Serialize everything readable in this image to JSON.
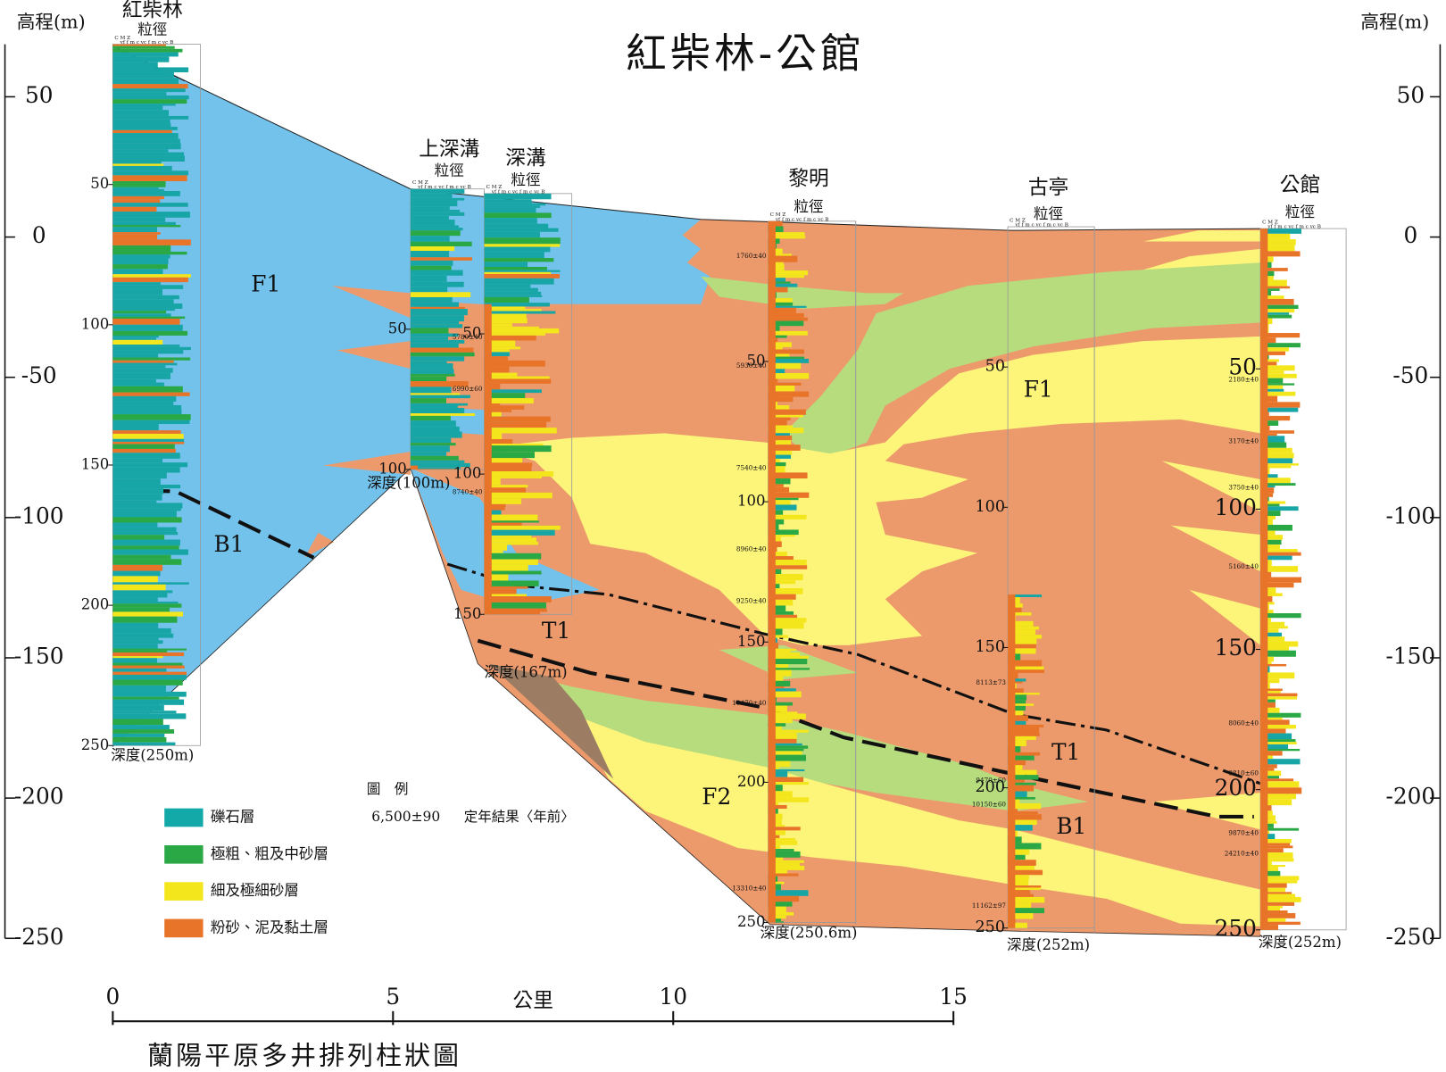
{
  "title": "紅柴林-公館",
  "caption": "蘭陽平原多井排列柱狀圖",
  "elevation_axis": {
    "label": "高程(m)",
    "ticks": [
      50,
      0,
      -50,
      -100,
      -150,
      -200,
      -250
    ]
  },
  "distance_axis": {
    "label": "公里",
    "ticks": [
      0,
      5,
      10,
      15
    ]
  },
  "grain_size_label": "粒徑",
  "grain_size_header": [
    "C M Z",
    "vf f m c vc f m c vc B"
  ],
  "wells": [
    {
      "name": "紅柴林",
      "depth_label": "深度(250m)",
      "depth_ticks": [
        50,
        100,
        150,
        200,
        250
      ],
      "dates": []
    },
    {
      "name": "上深溝",
      "depth_label": "深度(100m)",
      "depth_ticks": [
        50,
        100
      ],
      "dates": []
    },
    {
      "name": "深溝",
      "depth_label": "深度(167m)",
      "depth_ticks": [
        50,
        100,
        150
      ],
      "dates": [
        "5780±40",
        "6990±60",
        "8740±40"
      ]
    },
    {
      "name": "黎明",
      "depth_label": "深度(250.6m)",
      "depth_ticks": [
        50,
        100,
        150,
        200,
        250
      ],
      "dates": [
        "1760±40",
        "5930±40",
        "7540±40",
        "8960±40",
        "9250±40",
        "10470±40",
        "13310±40"
      ]
    },
    {
      "name": "古亭",
      "depth_label": "深度(252m)",
      "depth_ticks": [
        50,
        100,
        150,
        200,
        250
      ],
      "dates": [
        "8113±73",
        "9470±60",
        "10150±60",
        "11162±97"
      ]
    },
    {
      "name": "公館",
      "depth_label": "深度(252m)",
      "depth_ticks": [
        50,
        100,
        150,
        200,
        250
      ],
      "dates": [
        "2180±40",
        "3170±40",
        "3750±40",
        "5160±40",
        "8060±40",
        "8810±60",
        "9870±40",
        "24210±40"
      ]
    }
  ],
  "units": [
    "F1",
    "B1",
    "T1",
    "F2",
    "F1",
    "T1",
    "B1"
  ],
  "legend": {
    "title": "圖　例",
    "items": [
      "礫石層",
      "極粗、粗及中砂層",
      "細及極細砂層",
      "粉砂、泥及黏土層"
    ],
    "date_example": "6,500±90",
    "date_note": "定年結果〈年前〉"
  }
}
